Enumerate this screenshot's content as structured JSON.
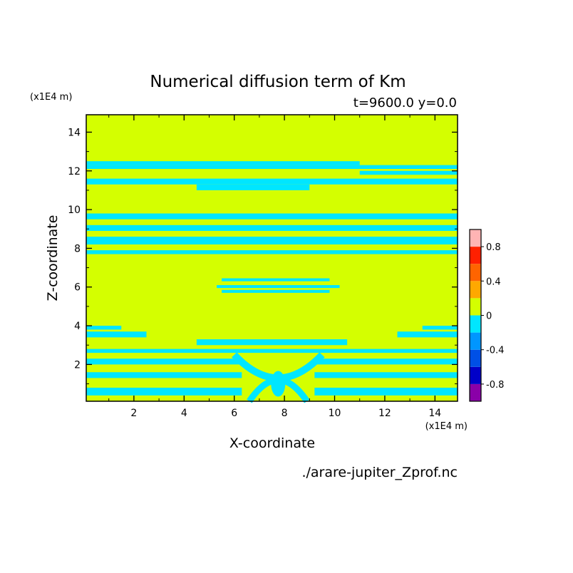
{
  "chart_data": {
    "type": "heatmap",
    "title": "Numerical diffusion term of Km",
    "subtitle": "t=9600.0 y=0.0",
    "xlabel": "X-coordinate",
    "ylabel": "Z-coordinate",
    "x_unit": "(x1E4 m)",
    "y_unit": "(x1E4 m)",
    "source_file": "./arare-jupiter_Zprof.nc",
    "xlim": [
      0.1,
      14.9
    ],
    "ylim": [
      0.1,
      14.9
    ],
    "x_ticks": [
      2,
      4,
      6,
      8,
      10,
      12,
      14
    ],
    "y_ticks": [
      2,
      4,
      6,
      8,
      10,
      12,
      14
    ],
    "colorbar": {
      "levels": [
        -1.0,
        -0.8,
        -0.6,
        -0.4,
        -0.2,
        0.0,
        0.2,
        0.4,
        0.6,
        0.8,
        1.0
      ],
      "colors": [
        "#8a00a8",
        "#0000c8",
        "#0050e6",
        "#0096ff",
        "#00e6ff",
        "#d4ff00",
        "#ffa800",
        "#ff6400",
        "#ff2000",
        "#ffb4b4"
      ],
      "tick_values": [
        -0.8,
        -0.4,
        0,
        0.4,
        0.8
      ],
      "tick_labels": [
        "-0.8",
        "-0.4",
        "0",
        "0.4",
        "0.8"
      ]
    },
    "field": {
      "background_value_range": [
        0.0,
        0.2
      ],
      "negative_band_value_range": [
        -0.2,
        0.0
      ],
      "bands_full_width_z": [
        [
          0.4,
          0.8
        ],
        [
          1.3,
          1.6
        ],
        [
          2.0,
          2.3
        ],
        [
          2.6,
          2.8
        ],
        [
          7.7,
          7.9
        ],
        [
          8.2,
          8.6
        ],
        [
          8.9,
          9.2
        ],
        [
          9.5,
          9.8
        ],
        [
          11.3,
          11.6
        ],
        [
          12.1,
          12.3
        ]
      ],
      "bands_partial": [
        {
          "x": [
            0.1,
            11.0
          ],
          "z": [
            12.3,
            12.5
          ]
        },
        {
          "x": [
            11.0,
            14.9
          ],
          "z": [
            11.8,
            12.0
          ]
        },
        {
          "x": [
            4.5,
            9.0
          ],
          "z": [
            11.0,
            11.3
          ]
        },
        {
          "x": [
            5.5,
            9.8
          ],
          "z": [
            6.3,
            6.45
          ]
        },
        {
          "x": [
            5.3,
            10.2
          ],
          "z": [
            5.95,
            6.1
          ]
        },
        {
          "x": [
            5.5,
            9.8
          ],
          "z": [
            5.7,
            5.85
          ]
        },
        {
          "x": [
            0.1,
            2.5
          ],
          "z": [
            3.4,
            3.7
          ]
        },
        {
          "x": [
            12.5,
            14.9
          ],
          "z": [
            3.4,
            3.7
          ]
        },
        {
          "x": [
            4.5,
            10.5
          ],
          "z": [
            3.0,
            3.3
          ]
        },
        {
          "x": [
            0.1,
            1.5
          ],
          "z": [
            3.8,
            4.0
          ]
        },
        {
          "x": [
            13.5,
            14.9
          ],
          "z": [
            3.8,
            4.0
          ]
        }
      ],
      "center_column_x": [
        6.0,
        9.5
      ],
      "center_column_z": [
        0.1,
        2.5
      ]
    }
  }
}
